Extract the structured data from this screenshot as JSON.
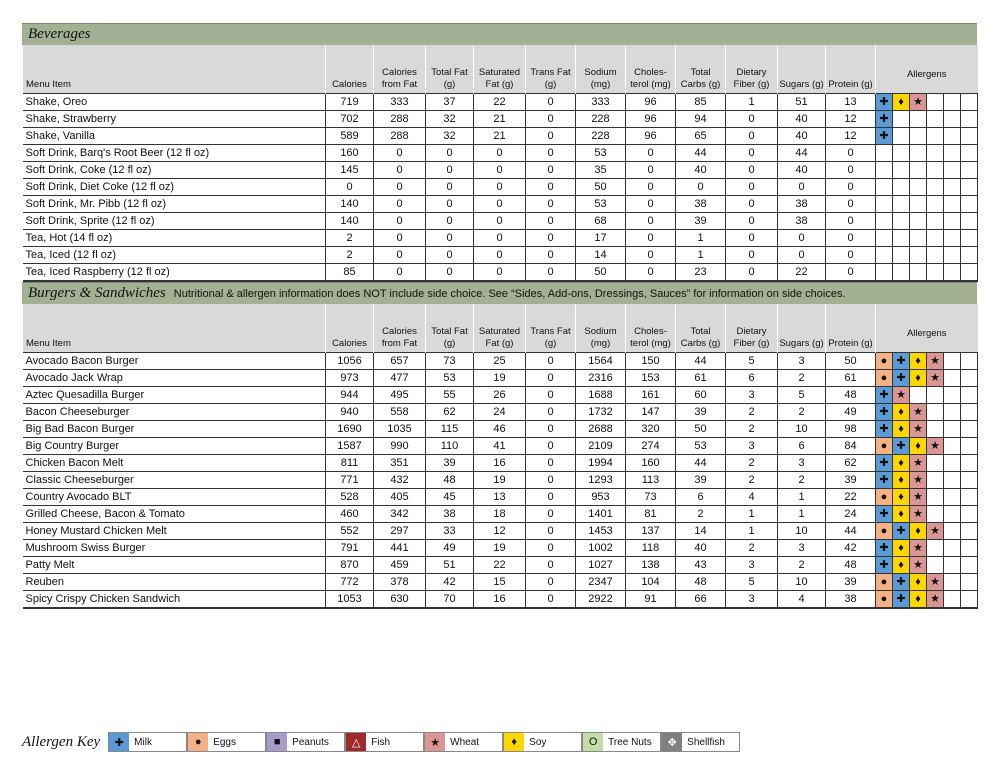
{
  "columns": [
    "Menu Item",
    "Calories",
    "Calories from Fat",
    "Total Fat (g)",
    "Saturated Fat (g)",
    "Trans Fat (g)",
    "Sodium (mg)",
    "Choles-terol (mg)",
    "Total Carbs (g)",
    "Dietary Fiber (g)",
    "Sugars (g)",
    "Protein (g)",
    "Allergens"
  ],
  "allergen_types": {
    "M": {
      "label": "Milk",
      "symbol": "✚",
      "color": "#5b9bd5",
      "icon": "cross-icon"
    },
    "E": {
      "label": "Eggs",
      "symbol": "●",
      "color": "#f4b183",
      "icon": "dot-icon"
    },
    "P": {
      "label": "Peanuts",
      "symbol": "■",
      "color": "#a99bc9",
      "icon": "square-icon"
    },
    "F": {
      "label": "Fish",
      "symbol": "△",
      "color": "#9e2a2b",
      "icon": "triangle-icon"
    },
    "W": {
      "label": "Wheat",
      "symbol": "★",
      "color": "#d99694",
      "icon": "star-icon"
    },
    "S": {
      "label": "Soy",
      "symbol": "♦",
      "color": "#ffd700",
      "icon": "diamond-icon"
    },
    "T": {
      "label": "Tree Nuts",
      "symbol": "O",
      "color": "#c5dba8",
      "icon": "ring-icon"
    },
    "H": {
      "label": "Shellfish",
      "symbol": "✥",
      "color": "#808080",
      "icon": "shell-icon"
    }
  },
  "allergen_key": {
    "title": "Allergen Key",
    "order": [
      "M",
      "E",
      "P",
      "F",
      "W",
      "S",
      "T",
      "H"
    ]
  },
  "sections": [
    {
      "title": "Beverages",
      "note": "",
      "rows": [
        [
          "Shake, Oreo",
          "719",
          "333",
          "37",
          "22",
          "0",
          "333",
          "96",
          "85",
          "1",
          "51",
          "13",
          "MSW"
        ],
        [
          "Shake, Strawberry",
          "702",
          "288",
          "32",
          "21",
          "0",
          "228",
          "96",
          "94",
          "0",
          "40",
          "12",
          "M"
        ],
        [
          "Shake, Vanilla",
          "589",
          "288",
          "32",
          "21",
          "0",
          "228",
          "96",
          "65",
          "0",
          "40",
          "12",
          "M"
        ],
        [
          "Soft Drink, Barq's Root Beer (12 fl oz)",
          "160",
          "0",
          "0",
          "0",
          "0",
          "53",
          "0",
          "44",
          "0",
          "44",
          "0",
          ""
        ],
        [
          "Soft Drink, Coke (12 fl oz)",
          "145",
          "0",
          "0",
          "0",
          "0",
          "35",
          "0",
          "40",
          "0",
          "40",
          "0",
          ""
        ],
        [
          "Soft Drink, Diet Coke (12 fl oz)",
          "0",
          "0",
          "0",
          "0",
          "0",
          "50",
          "0",
          "0",
          "0",
          "0",
          "0",
          ""
        ],
        [
          "Soft Drink, Mr. Pibb (12 fl oz)",
          "140",
          "0",
          "0",
          "0",
          "0",
          "53",
          "0",
          "38",
          "0",
          "38",
          "0",
          ""
        ],
        [
          "Soft Drink, Sprite (12 fl oz)",
          "140",
          "0",
          "0",
          "0",
          "0",
          "68",
          "0",
          "39",
          "0",
          "38",
          "0",
          ""
        ],
        [
          "Tea, Hot (14 fl oz)",
          "2",
          "0",
          "0",
          "0",
          "0",
          "17",
          "0",
          "1",
          "0",
          "0",
          "0",
          ""
        ],
        [
          "Tea, Iced (12 fl oz)",
          "2",
          "0",
          "0",
          "0",
          "0",
          "14",
          "0",
          "1",
          "0",
          "0",
          "0",
          ""
        ],
        [
          "Tea, Iced Raspberry (12 fl oz)",
          "85",
          "0",
          "0",
          "0",
          "0",
          "50",
          "0",
          "23",
          "0",
          "22",
          "0",
          ""
        ]
      ]
    },
    {
      "title": "Burgers & Sandwiches",
      "note": "Nutritional & allergen information does NOT include side choice.  See “Sides, Add-ons, Dressings, Sauces” for information on side choices.",
      "rows": [
        [
          "Avocado Bacon Burger",
          "1056",
          "657",
          "73",
          "25",
          "0",
          "1564",
          "150",
          "44",
          "5",
          "3",
          "50",
          "EMSW"
        ],
        [
          "Avocado Jack Wrap",
          "973",
          "477",
          "53",
          "19",
          "0",
          "2316",
          "153",
          "61",
          "6",
          "2",
          "61",
          "EMSW"
        ],
        [
          "Aztec Quesadilla Burger",
          "944",
          "495",
          "55",
          "26",
          "0",
          "1688",
          "161",
          "60",
          "3",
          "5",
          "48",
          "MW"
        ],
        [
          "Bacon Cheeseburger",
          "940",
          "558",
          "62",
          "24",
          "0",
          "1732",
          "147",
          "39",
          "2",
          "2",
          "49",
          "MSW"
        ],
        [
          "Big Bad Bacon Burger",
          "1690",
          "1035",
          "115",
          "46",
          "0",
          "2688",
          "320",
          "50",
          "2",
          "10",
          "98",
          "MSW"
        ],
        [
          "Big Country Burger",
          "1587",
          "990",
          "110",
          "41",
          "0",
          "2109",
          "274",
          "53",
          "3",
          "6",
          "84",
          "EMSW"
        ],
        [
          "Chicken Bacon Melt",
          "811",
          "351",
          "39",
          "16",
          "0",
          "1994",
          "160",
          "44",
          "2",
          "3",
          "62",
          "MSW"
        ],
        [
          "Classic Cheeseburger",
          "771",
          "432",
          "48",
          "19",
          "0",
          "1293",
          "113",
          "39",
          "2",
          "2",
          "39",
          "MSW"
        ],
        [
          "Country Avocado BLT",
          "528",
          "405",
          "45",
          "13",
          "0",
          "953",
          "73",
          "6",
          "4",
          "1",
          "22",
          "ESW"
        ],
        [
          "Grilled Cheese, Bacon & Tomato",
          "460",
          "342",
          "38",
          "18",
          "0",
          "1401",
          "81",
          "2",
          "1",
          "1",
          "24",
          "MSW"
        ],
        [
          "Honey Mustard Chicken Melt",
          "552",
          "297",
          "33",
          "12",
          "0",
          "1453",
          "137",
          "14",
          "1",
          "10",
          "44",
          "EMSW"
        ],
        [
          "Mushroom Swiss Burger",
          "791",
          "441",
          "49",
          "19",
          "0",
          "1002",
          "118",
          "40",
          "2",
          "3",
          "42",
          "MSW"
        ],
        [
          "Patty Melt",
          "870",
          "459",
          "51",
          "22",
          "0",
          "1027",
          "138",
          "43",
          "3",
          "2",
          "48",
          "MSW"
        ],
        [
          "Reuben",
          "772",
          "378",
          "42",
          "15",
          "0",
          "2347",
          "104",
          "48",
          "5",
          "10",
          "39",
          "EMSW"
        ],
        [
          "Spicy Crispy Chicken Sandwich",
          "1053",
          "630",
          "70",
          "16",
          "0",
          "2922",
          "91",
          "66",
          "3",
          "4",
          "38",
          "EMSW"
        ]
      ]
    }
  ]
}
